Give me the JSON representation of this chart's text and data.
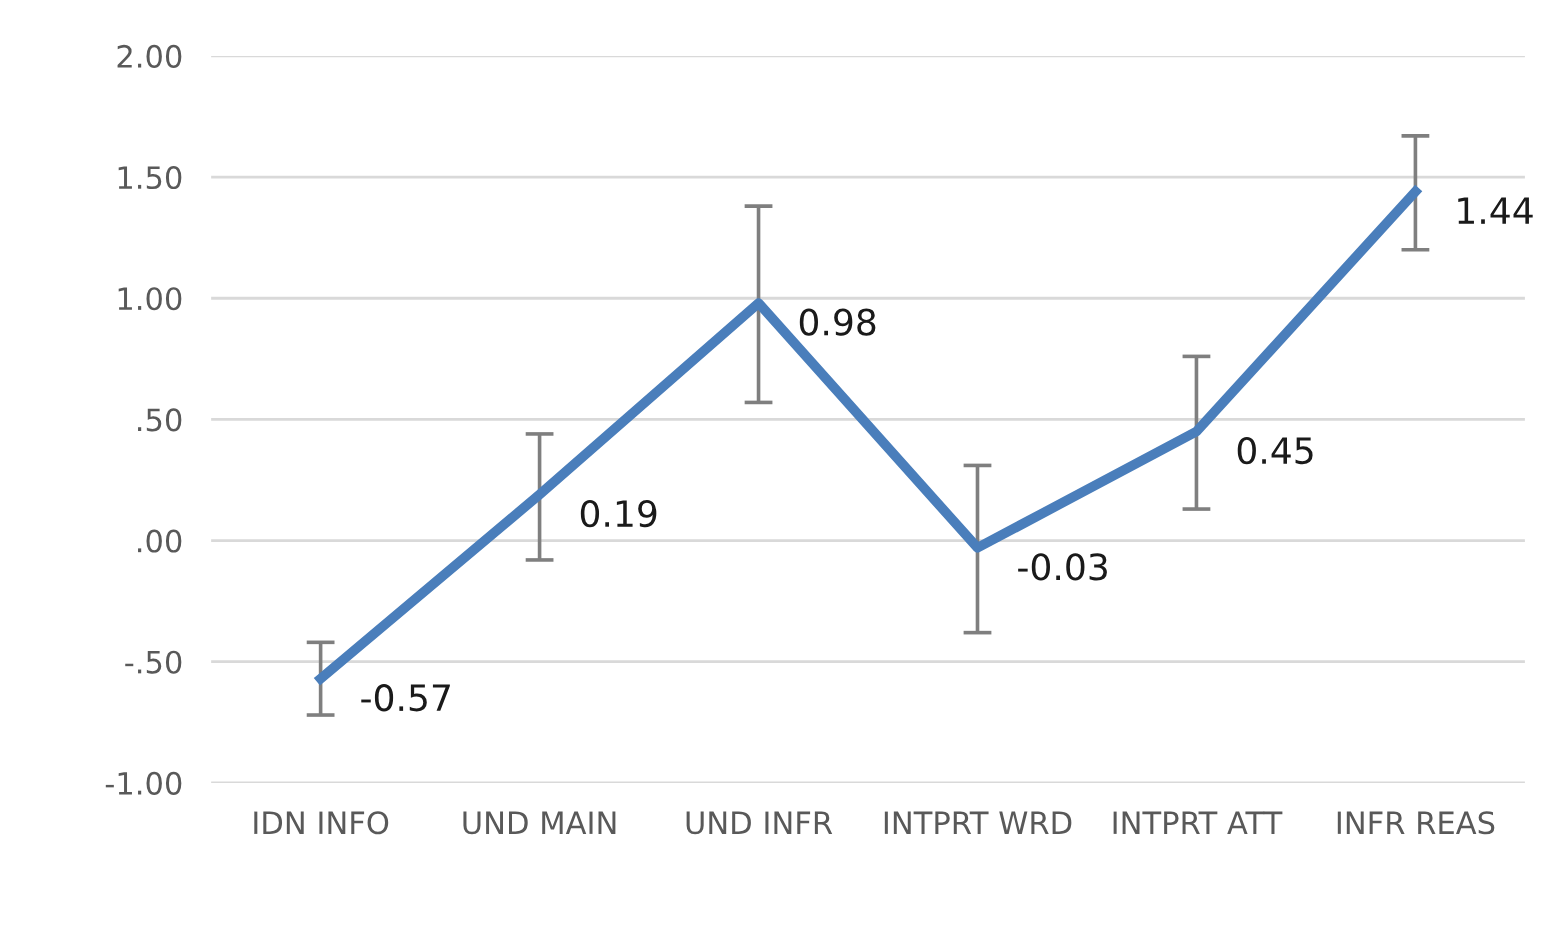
{
  "chart_data": {
    "type": "line",
    "categories": [
      "IDN INFO",
      "UND MAIN",
      "UND INFR",
      "INTPRT WRD",
      "INTPRT ATT",
      "INFR REAS"
    ],
    "series": [
      {
        "color": "#4a7ebb",
        "values": [
          -0.57,
          0.19,
          0.98,
          -0.03,
          0.45,
          1.44
        ],
        "errors": [
          [
            -0.72,
            -0.42
          ],
          [
            -0.08,
            0.44
          ],
          [
            0.57,
            1.38
          ],
          [
            -0.38,
            0.31
          ],
          [
            0.13,
            0.76
          ],
          [
            1.2,
            1.67
          ]
        ]
      }
    ],
    "ylim": [
      -1.0,
      2.0
    ],
    "yticks": [
      {
        "value": -1.0,
        "label": "-1.00"
      },
      {
        "value": -0.5,
        "label": "-.50"
      },
      {
        "value": 0.0,
        "label": ".00"
      },
      {
        "value": 0.5,
        "label": ".50"
      },
      {
        "value": 1.0,
        "label": "1.00"
      },
      {
        "value": 1.5,
        "label": "1.50"
      },
      {
        "value": 2.0,
        "label": "2.00"
      }
    ],
    "grid": "y",
    "data_labels": true,
    "marker": "none",
    "line_style": "solid",
    "legend": false
  }
}
